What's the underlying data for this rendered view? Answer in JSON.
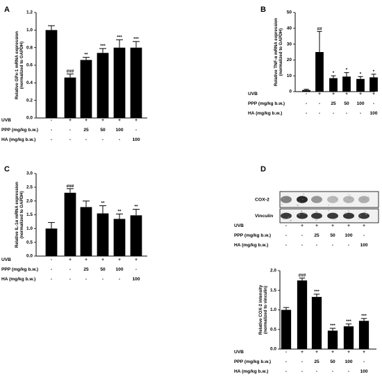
{
  "chart_data": [
    {
      "panel": "A",
      "type": "bar",
      "categories": [
        "1",
        "2",
        "3",
        "4",
        "5",
        "6"
      ],
      "values": [
        1.0,
        0.46,
        0.66,
        0.74,
        0.8,
        0.8
      ],
      "errors": [
        0.05,
        0.04,
        0.03,
        0.05,
        0.09,
        0.07
      ],
      "annotations": [
        "",
        "###",
        "**",
        "***",
        "***",
        "***"
      ],
      "ylabel_line1": "Relative GPx-1 mRNA expression",
      "ylabel_line2": "(normalized to GAPDH)",
      "ylim": [
        0,
        1.2
      ],
      "yticks": [
        "0.0",
        "0.2",
        "0.4",
        "0.6",
        "0.8",
        "1.0",
        "1.2"
      ],
      "table": [
        {
          "label": "UVB",
          "cells": [
            "-",
            "+",
            "+",
            "+",
            "+",
            "+"
          ]
        },
        {
          "label": "PPP (mg/kg b.w.)",
          "cells": [
            "-",
            "-",
            "25",
            "50",
            "100",
            "-"
          ]
        },
        {
          "label": "HA (mg/kg b.w.)",
          "cells": [
            "-",
            "-",
            "-",
            "-",
            "-",
            "100"
          ]
        }
      ]
    },
    {
      "panel": "B",
      "type": "bar",
      "categories": [
        "1",
        "2",
        "3",
        "4",
        "5",
        "6"
      ],
      "values": [
        1.0,
        25.0,
        8.5,
        9.5,
        8.0,
        9.0
      ],
      "errors": [
        0.5,
        13.0,
        1.5,
        2.5,
        1.5,
        2.0
      ],
      "annotations": [
        "",
        "##",
        "*",
        "*",
        "*",
        "*"
      ],
      "ylabel_line1": "Relative TNF-α mRNA expression",
      "ylabel_line2": "(normalized to GAPDH)",
      "ylim": [
        0,
        50
      ],
      "yticks": [
        "0",
        "10",
        "20",
        "30",
        "40",
        "50"
      ],
      "table": [
        {
          "label": "UVB",
          "cells": [
            "-",
            "+",
            "+",
            "+",
            "+",
            "+"
          ]
        },
        {
          "label": "PPP (mg/kg b.w.)",
          "cells": [
            "-",
            "-",
            "25",
            "50",
            "100",
            "-"
          ]
        },
        {
          "label": "HA (mg/kg b.w.)",
          "cells": [
            "-",
            "-",
            "-",
            "-",
            "-",
            "100"
          ]
        }
      ]
    },
    {
      "panel": "C",
      "type": "bar",
      "categories": [
        "1",
        "2",
        "3",
        "4",
        "5",
        "6"
      ],
      "values": [
        1.0,
        2.3,
        1.78,
        1.55,
        1.35,
        1.48
      ],
      "errors": [
        0.22,
        0.15,
        0.22,
        0.28,
        0.18,
        0.22
      ],
      "annotations": [
        "",
        "###",
        "",
        "**",
        "**",
        "**"
      ],
      "ylabel_line1": "Relative IL-1α mRNA expression",
      "ylabel_line2": "(normalized to GAPDH)",
      "ylim": [
        0,
        3.0
      ],
      "yticks": [
        "0.0",
        "0.5",
        "1.0",
        "1.5",
        "2.0",
        "2.5",
        "3.0"
      ],
      "table": [
        {
          "label": "UVB",
          "cells": [
            "-",
            "+",
            "+",
            "+",
            "+",
            "+"
          ]
        },
        {
          "label": "PPP (mg/kg b.w.)",
          "cells": [
            "-",
            "-",
            "25",
            "50",
            "100",
            "-"
          ]
        },
        {
          "label": "HA (mg/kg b.w.)",
          "cells": [
            "-",
            "-",
            "-",
            "-",
            "-",
            "100"
          ]
        }
      ]
    },
    {
      "panel": "D",
      "type": "bar",
      "categories": [
        "1",
        "2",
        "3",
        "4",
        "5",
        "6"
      ],
      "values": [
        1.0,
        1.75,
        1.33,
        0.47,
        0.58,
        0.72
      ],
      "errors": [
        0.06,
        0.06,
        0.07,
        0.06,
        0.06,
        0.06
      ],
      "annotations": [
        "",
        "###",
        "***",
        "***",
        "***",
        "***"
      ],
      "ylabel_line1": "Relative COX-2 intensity",
      "ylabel_line2": "(normalized to vinculin)",
      "ylim": [
        0,
        2.0
      ],
      "yticks": [
        "0.0",
        "0.5",
        "1.0",
        "1.5",
        "2.0"
      ],
      "blot_labels": [
        "COX-2",
        "Vinculin"
      ],
      "blot_table": [
        {
          "label": "UVB",
          "cells": [
            "-",
            "+",
            "+",
            "+",
            "+",
            "+"
          ]
        },
        {
          "label": "PPP (mg/kg b.w.)",
          "cells": [
            "-",
            "-",
            "25",
            "50",
            "100",
            "-"
          ]
        },
        {
          "label": "HA (mg/kg b.w.)",
          "cells": [
            "-",
            "-",
            "-",
            "-",
            "-",
            "100"
          ]
        }
      ],
      "table": [
        {
          "label": "UVB",
          "cells": [
            "-",
            "+",
            "+",
            "+",
            "+",
            "+"
          ]
        },
        {
          "label": "PPP (mg/kg b.w.)",
          "cells": [
            "-",
            "-",
            "25",
            "50",
            "100",
            "-"
          ]
        },
        {
          "label": "HA (mg/kg b.w.)",
          "cells": [
            "-",
            "-",
            "-",
            "-",
            "-",
            "100"
          ]
        }
      ]
    }
  ]
}
